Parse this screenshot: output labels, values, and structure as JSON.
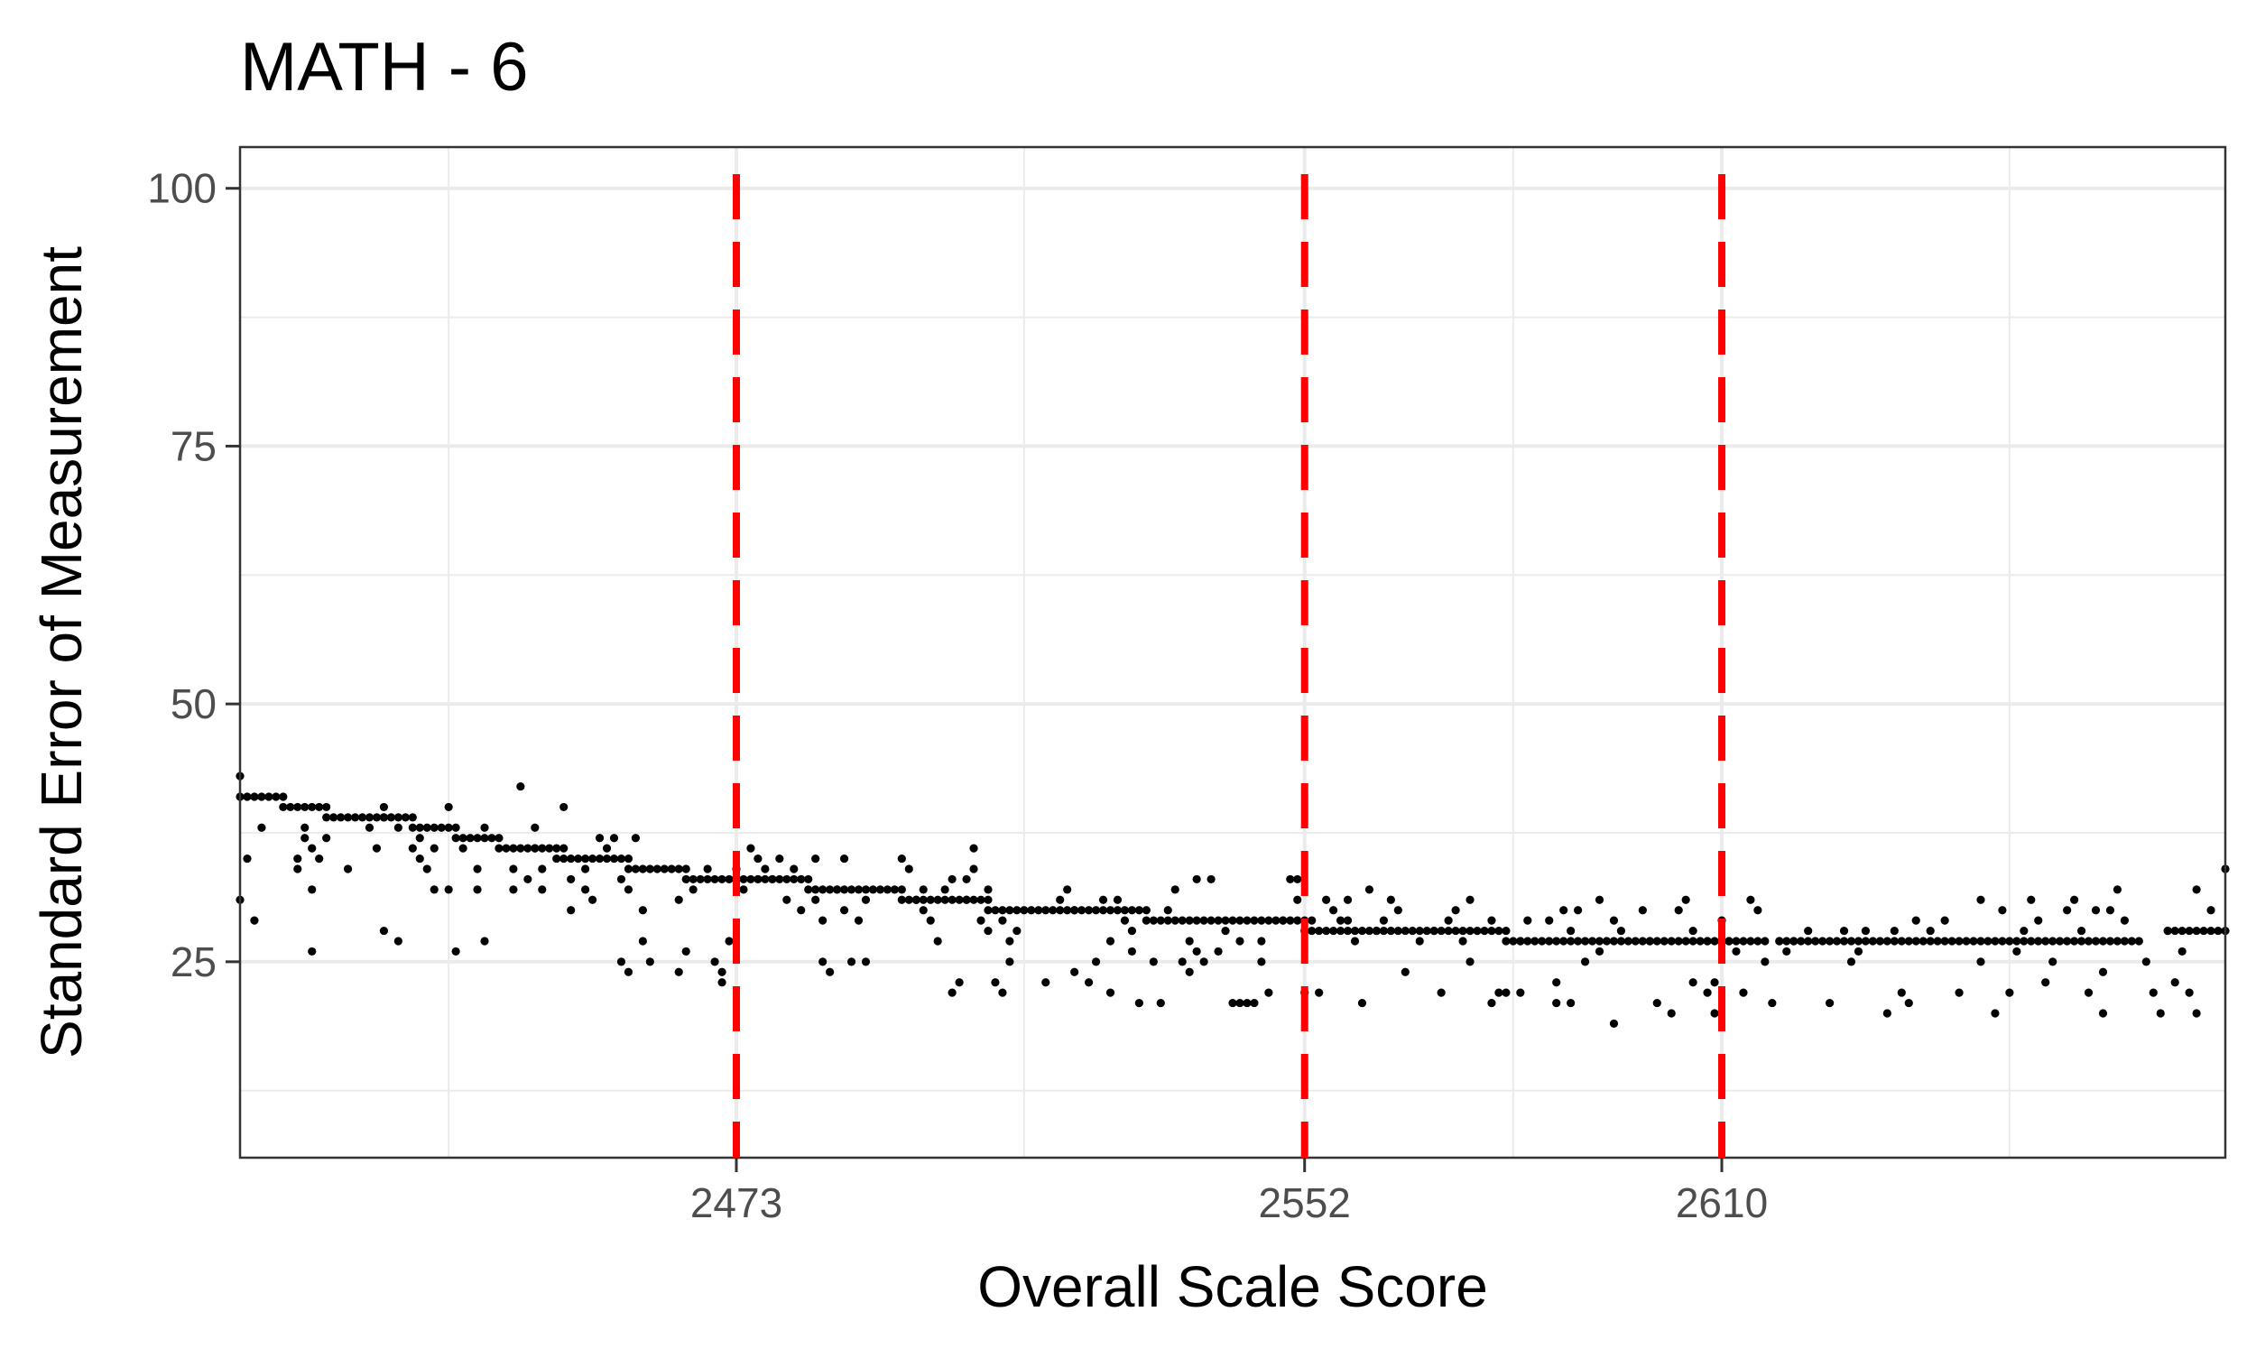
{
  "chart_data": {
    "type": "scatter",
    "title": "MATH - 6",
    "xlabel": "Overall Scale Score",
    "ylabel": "Standard Error of Measurement",
    "xlim": [
      2404,
      2680
    ],
    "ylim": [
      6,
      104
    ],
    "x_ticks": [
      2473,
      2552,
      2610
    ],
    "y_ticks": [
      25,
      50,
      75,
      100
    ],
    "x_minor_gridlines": [
      2433,
      2513,
      2581,
      2650
    ],
    "y_minor_gridlines": [
      12.5,
      37.5,
      62.5,
      87.5
    ],
    "grid": true,
    "reference_lines": {
      "x": [
        2473,
        2552,
        2610
      ],
      "color": "#ff0000",
      "style": "dashed"
    },
    "point_color": "#000000",
    "trend_segments": [
      {
        "x_from": 2404,
        "x_to": 2410,
        "y": 41
      },
      {
        "x_from": 2410,
        "x_to": 2416,
        "y": 40
      },
      {
        "x_from": 2416,
        "x_to": 2428,
        "y": 39
      },
      {
        "x_from": 2428,
        "x_to": 2434,
        "y": 38
      },
      {
        "x_from": 2434,
        "x_to": 2440,
        "y": 37
      },
      {
        "x_from": 2440,
        "x_to": 2449,
        "y": 36
      },
      {
        "x_from": 2449,
        "x_to": 2458,
        "y": 35
      },
      {
        "x_from": 2458,
        "x_to": 2466,
        "y": 34
      },
      {
        "x_from": 2466,
        "x_to": 2476,
        "y": 33
      },
      {
        "x_from": 2476,
        "x_to": 2483,
        "y": 33
      },
      {
        "x_from": 2483,
        "x_to": 2496,
        "y": 32
      },
      {
        "x_from": 2496,
        "x_to": 2508,
        "y": 31
      },
      {
        "x_from": 2508,
        "x_to": 2530,
        "y": 30
      },
      {
        "x_from": 2530,
        "x_to": 2552,
        "y": 29
      },
      {
        "x_from": 2552,
        "x_to": 2580,
        "y": 28
      },
      {
        "x_from": 2580,
        "x_to": 2600,
        "y": 27
      },
      {
        "x_from": 2600,
        "x_to": 2616,
        "y": 27
      },
      {
        "x_from": 2618,
        "x_to": 2668,
        "y": 27
      },
      {
        "x_from": 2672,
        "x_to": 2680,
        "y": 28
      }
    ],
    "scatter_points": [
      [
        2404,
        43
      ],
      [
        2404,
        31
      ],
      [
        2405,
        35
      ],
      [
        2406,
        29
      ],
      [
        2407,
        38
      ],
      [
        2412,
        35
      ],
      [
        2412,
        34
      ],
      [
        2413,
        37
      ],
      [
        2413,
        38
      ],
      [
        2414,
        26
      ],
      [
        2414,
        32
      ],
      [
        2414,
        36
      ],
      [
        2415,
        35
      ],
      [
        2416,
        37
      ],
      [
        2419,
        34
      ],
      [
        2422,
        38
      ],
      [
        2423,
        36
      ],
      [
        2424,
        40
      ],
      [
        2424,
        39
      ],
      [
        2424,
        28
      ],
      [
        2426,
        27
      ],
      [
        2426,
        38
      ],
      [
        2428,
        36
      ],
      [
        2429,
        37
      ],
      [
        2429,
        35
      ],
      [
        2430,
        34
      ],
      [
        2431,
        36
      ],
      [
        2431,
        32
      ],
      [
        2433,
        32
      ],
      [
        2433,
        40
      ],
      [
        2434,
        26
      ],
      [
        2435,
        36
      ],
      [
        2437,
        32
      ],
      [
        2437,
        34
      ],
      [
        2438,
        27
      ],
      [
        2438,
        38
      ],
      [
        2442,
        32
      ],
      [
        2442,
        34
      ],
      [
        2443,
        42
      ],
      [
        2444,
        33
      ],
      [
        2445,
        36
      ],
      [
        2445,
        38
      ],
      [
        2446,
        32
      ],
      [
        2446,
        34
      ],
      [
        2448,
        35
      ],
      [
        2449,
        40
      ],
      [
        2450,
        33
      ],
      [
        2450,
        30
      ],
      [
        2452,
        32
      ],
      [
        2452,
        34
      ],
      [
        2453,
        31
      ],
      [
        2454,
        37
      ],
      [
        2455,
        36
      ],
      [
        2456,
        37
      ],
      [
        2457,
        33
      ],
      [
        2457,
        25
      ],
      [
        2458,
        24
      ],
      [
        2458,
        32
      ],
      [
        2459,
        37
      ],
      [
        2460,
        30
      ],
      [
        2460,
        27
      ],
      [
        2461,
        25
      ],
      [
        2465,
        31
      ],
      [
        2465,
        24
      ],
      [
        2466,
        26
      ],
      [
        2467,
        32
      ],
      [
        2469,
        34
      ],
      [
        2470,
        25
      ],
      [
        2471,
        24
      ],
      [
        2471,
        23
      ],
      [
        2472,
        27
      ],
      [
        2473,
        34
      ],
      [
        2474,
        32
      ],
      [
        2475,
        36
      ],
      [
        2476,
        35
      ],
      [
        2477,
        34
      ],
      [
        2478,
        33
      ],
      [
        2479,
        35
      ],
      [
        2480,
        31
      ],
      [
        2481,
        34
      ],
      [
        2482,
        30
      ],
      [
        2484,
        35
      ],
      [
        2484,
        31
      ],
      [
        2485,
        29
      ],
      [
        2485,
        25
      ],
      [
        2486,
        24
      ],
      [
        2487,
        32
      ],
      [
        2488,
        35
      ],
      [
        2488,
        30
      ],
      [
        2489,
        25
      ],
      [
        2490,
        29
      ],
      [
        2491,
        31
      ],
      [
        2491,
        25
      ],
      [
        2496,
        35
      ],
      [
        2497,
        34
      ],
      [
        2498,
        31
      ],
      [
        2499,
        32
      ],
      [
        2499,
        30
      ],
      [
        2500,
        29
      ],
      [
        2501,
        27
      ],
      [
        2502,
        32
      ],
      [
        2503,
        33
      ],
      [
        2503,
        22
      ],
      [
        2504,
        23
      ],
      [
        2505,
        31
      ],
      [
        2505,
        33
      ],
      [
        2506,
        34
      ],
      [
        2506,
        36
      ],
      [
        2507,
        29
      ],
      [
        2508,
        32
      ],
      [
        2508,
        28
      ],
      [
        2509,
        23
      ],
      [
        2510,
        22
      ],
      [
        2510,
        29
      ],
      [
        2511,
        27
      ],
      [
        2511,
        25
      ],
      [
        2512,
        28
      ],
      [
        2516,
        23
      ],
      [
        2518,
        31
      ],
      [
        2519,
        32
      ],
      [
        2520,
        30
      ],
      [
        2520,
        24
      ],
      [
        2522,
        23
      ],
      [
        2523,
        25
      ],
      [
        2524,
        31
      ],
      [
        2525,
        27
      ],
      [
        2525,
        22
      ],
      [
        2526,
        31
      ],
      [
        2527,
        29
      ],
      [
        2528,
        28
      ],
      [
        2528,
        26
      ],
      [
        2529,
        21
      ],
      [
        2531,
        25
      ],
      [
        2532,
        21
      ],
      [
        2533,
        30
      ],
      [
        2534,
        32
      ],
      [
        2535,
        25
      ],
      [
        2536,
        27
      ],
      [
        2536,
        24
      ],
      [
        2537,
        26
      ],
      [
        2537,
        33
      ],
      [
        2538,
        25
      ],
      [
        2539,
        33
      ],
      [
        2540,
        26
      ],
      [
        2541,
        28
      ],
      [
        2542,
        21
      ],
      [
        2543,
        21
      ],
      [
        2543,
        27
      ],
      [
        2544,
        21
      ],
      [
        2545,
        21
      ],
      [
        2546,
        27
      ],
      [
        2546,
        25
      ],
      [
        2547,
        22
      ],
      [
        2549,
        29
      ],
      [
        2550,
        33
      ],
      [
        2551,
        33
      ],
      [
        2551,
        31
      ],
      [
        2552,
        22
      ],
      [
        2553,
        29
      ],
      [
        2554,
        22
      ],
      [
        2555,
        31
      ],
      [
        2556,
        30
      ],
      [
        2557,
        29
      ],
      [
        2558,
        29
      ],
      [
        2558,
        31
      ],
      [
        2559,
        27
      ],
      [
        2560,
        21
      ],
      [
        2561,
        32
      ],
      [
        2562,
        28
      ],
      [
        2563,
        29
      ],
      [
        2564,
        31
      ],
      [
        2565,
        30
      ],
      [
        2566,
        24
      ],
      [
        2568,
        27
      ],
      [
        2570,
        28
      ],
      [
        2571,
        22
      ],
      [
        2572,
        29
      ],
      [
        2573,
        30
      ],
      [
        2574,
        27
      ],
      [
        2575,
        31
      ],
      [
        2575,
        25
      ],
      [
        2578,
        21
      ],
      [
        2578,
        29
      ],
      [
        2579,
        22
      ],
      [
        2580,
        22
      ],
      [
        2582,
        27
      ],
      [
        2582,
        22
      ],
      [
        2583,
        29
      ],
      [
        2586,
        29
      ],
      [
        2587,
        23
      ],
      [
        2587,
        21
      ],
      [
        2588,
        30
      ],
      [
        2589,
        28
      ],
      [
        2589,
        21
      ],
      [
        2590,
        30
      ],
      [
        2591,
        25
      ],
      [
        2593,
        26
      ],
      [
        2593,
        31
      ],
      [
        2595,
        29
      ],
      [
        2595,
        19
      ],
      [
        2596,
        28
      ],
      [
        2599,
        30
      ],
      [
        2601,
        21
      ],
      [
        2603,
        20
      ],
      [
        2604,
        30
      ],
      [
        2605,
        31
      ],
      [
        2606,
        28
      ],
      [
        2606,
        23
      ],
      [
        2608,
        27
      ],
      [
        2608,
        22
      ],
      [
        2609,
        20
      ],
      [
        2609,
        23
      ],
      [
        2610,
        29
      ],
      [
        2611,
        27
      ],
      [
        2612,
        26
      ],
      [
        2613,
        22
      ],
      [
        2614,
        31
      ],
      [
        2615,
        30
      ],
      [
        2616,
        25
      ],
      [
        2617,
        21
      ],
      [
        2618,
        27
      ],
      [
        2619,
        26
      ],
      [
        2620,
        27
      ],
      [
        2622,
        28
      ],
      [
        2625,
        21
      ],
      [
        2627,
        28
      ],
      [
        2628,
        25
      ],
      [
        2629,
        26
      ],
      [
        2630,
        28
      ],
      [
        2633,
        20
      ],
      [
        2634,
        28
      ],
      [
        2635,
        22
      ],
      [
        2636,
        21
      ],
      [
        2637,
        29
      ],
      [
        2639,
        28
      ],
      [
        2641,
        29
      ],
      [
        2643,
        22
      ],
      [
        2646,
        31
      ],
      [
        2646,
        25
      ],
      [
        2648,
        20
      ],
      [
        2649,
        30
      ],
      [
        2650,
        22
      ],
      [
        2651,
        26
      ],
      [
        2652,
        28
      ],
      [
        2653,
        31
      ],
      [
        2654,
        29
      ],
      [
        2655,
        23
      ],
      [
        2656,
        25
      ],
      [
        2658,
        30
      ],
      [
        2659,
        31
      ],
      [
        2660,
        28
      ],
      [
        2661,
        22
      ],
      [
        2662,
        30
      ],
      [
        2663,
        24
      ],
      [
        2663,
        20
      ],
      [
        2664,
        30
      ],
      [
        2665,
        32
      ],
      [
        2666,
        29
      ],
      [
        2669,
        25
      ],
      [
        2670,
        22
      ],
      [
        2671,
        20
      ],
      [
        2672,
        28
      ],
      [
        2673,
        23
      ],
      [
        2674,
        26
      ],
      [
        2675,
        22
      ],
      [
        2676,
        20
      ],
      [
        2676,
        32
      ],
      [
        2678,
        30
      ],
      [
        2680,
        34
      ]
    ]
  }
}
